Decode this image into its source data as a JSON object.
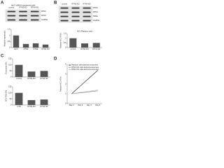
{
  "panels": [
    "A",
    "B",
    "C",
    "D"
  ],
  "blots": [
    {
      "header": "Huh7 shRNA transfected cells",
      "lanes": [
        "control",
        "RTN3 KD",
        "RTN4 KD"
      ],
      "bands": [
        "RTN3",
        "RTN4",
        "GAPDH"
      ]
    },
    {
      "lanes": [
        "control",
        "RTN3 KD",
        "RTN4 KD"
      ],
      "bands": [
        "RTN3",
        "RTN4",
        "NS5A",
        "GAPDH"
      ]
    }
  ],
  "chart_data": [
    {
      "type": "bar",
      "ylabel": "Relative expression",
      "categories": [
        "Huh7",
        "RTN3",
        "RTN4",
        "RTN3 KD"
      ],
      "values": [
        1,
        0.3,
        0.35,
        0.25
      ],
      "color": "#555555",
      "ylim": [
        0,
        1.5
      ],
      "yticks": [
        0,
        0.5,
        1,
        1.5
      ]
    },
    {
      "type": "bar",
      "title": "HCV Replicon cells",
      "ylabel": "Relative HCV RNA",
      "categories": [
        "control",
        "RTN3 KD",
        "RTN4 KD"
      ],
      "values": [
        1,
        0.45,
        0.5
      ],
      "color": "#555555",
      "ylim": [
        0,
        1.5
      ],
      "yticks": [
        0,
        0.5,
        1,
        1.5
      ]
    },
    {
      "type": "bar",
      "ylabel": "Exosomes (%)",
      "categories": [
        "control",
        "RTN3 KD",
        "RTN4 KD"
      ],
      "values": [
        100,
        45,
        50
      ],
      "color": "#555555",
      "ylim": [
        0,
        150
      ],
      "yticks": [
        0,
        50,
        100,
        150
      ]
    },
    {
      "type": "bar",
      "ylabel": "HCV RNA (%)",
      "categories": [
        "CTR",
        "RTN3 KD",
        "RTN4 KD"
      ],
      "values": [
        100,
        40,
        45
      ],
      "color": "#555555",
      "ylim": [
        0,
        150
      ],
      "yticks": [
        0,
        50,
        100,
        150
      ]
    },
    {
      "type": "line",
      "ylabel": "Relative HCV RNA",
      "categories": [
        "Day 2",
        "Day 3",
        "Day 4",
        "Day 5"
      ],
      "legend": "upper left",
      "series": [
        {
          "name": "Replicon cells-derived exosomes",
          "color": "#111111",
          "values": [
            1,
            1.8,
            2.6,
            3.4
          ]
        },
        {
          "name": "RTN3 KD cells-derived exosomes",
          "color": "#777777",
          "values": [
            1,
            1.1,
            1.2,
            1.3
          ]
        },
        {
          "name": "RTN4 KD cells-derived exosomes",
          "color": "#bbbbbb",
          "values": [
            1,
            1.15,
            1.25,
            1.4
          ]
        }
      ],
      "ylim": [
        0,
        4
      ],
      "yticks": [
        0,
        1,
        2,
        3,
        4
      ]
    }
  ]
}
